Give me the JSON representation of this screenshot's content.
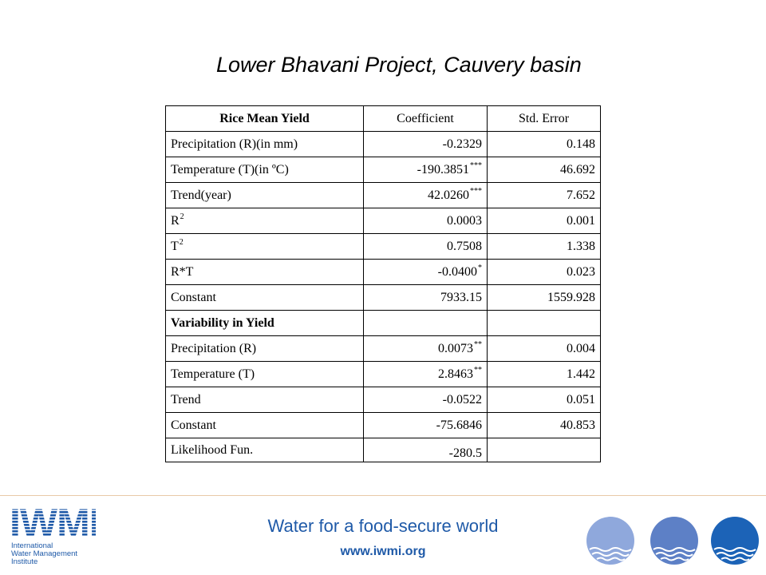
{
  "slide": {
    "title": "Lower Bhavani Project, Cauvery basin"
  },
  "table": {
    "headers": [
      "Rice Mean Yield",
      "Coefficient",
      "Std. Error"
    ],
    "rows": [
      {
        "label": "Precipitation (R)(in mm)",
        "coef": "-0.2329",
        "sig": "",
        "se": "0.148"
      },
      {
        "label": "Temperature (T)(in ºC)",
        "coef": "-190.3851",
        "sig": "***",
        "se": "46.692"
      },
      {
        "label": "Trend(year)",
        "coef": "42.0260",
        "sig": "***",
        "se": "7.652"
      },
      {
        "label": "R",
        "label_sup": "2",
        "coef": "0.0003",
        "sig": "",
        "se": "0.001"
      },
      {
        "label": "T",
        "label_sup": "2",
        "coef": "0.7508",
        "sig": "",
        "se": "1.338"
      },
      {
        "label": "R*T",
        "coef": "-0.0400",
        "sig": "*",
        "se": "0.023"
      },
      {
        "label": "Constant",
        "coef": "7933.15",
        "sig": "",
        "se": "1559.928"
      },
      {
        "label": "Variability in Yield",
        "coef": "",
        "sig": "",
        "se": ""
      },
      {
        "label": "Precipitation (R)",
        "coef": "0.0073",
        "sig": "**",
        "se": "0.004"
      },
      {
        "label": "Temperature (T)",
        "coef": "2.8463",
        "sig": "**",
        "se": "1.442"
      },
      {
        "label": "Trend",
        "coef": "-0.0522",
        "sig": "",
        "se": "0.051"
      },
      {
        "label": "Constant",
        "coef": "-75.6846",
        "sig": "",
        "se": "40.853"
      },
      {
        "label": "Likelihood Fun.",
        "coef": "-280.5",
        "sig": "",
        "se": ""
      }
    ]
  },
  "footer": {
    "tagline": "Water for a food-secure world",
    "url": "www.iwmi.org",
    "logo_text": [
      "IWMI",
      "International",
      "Water Management",
      "Institute"
    ]
  },
  "colors": {
    "brand_blue": "#1f5aa8",
    "divider": "#e8c9a8",
    "drop_light": "#8fa8dc",
    "drop_mid": "#5d80c6",
    "drop_dark": "#1c63b7"
  }
}
